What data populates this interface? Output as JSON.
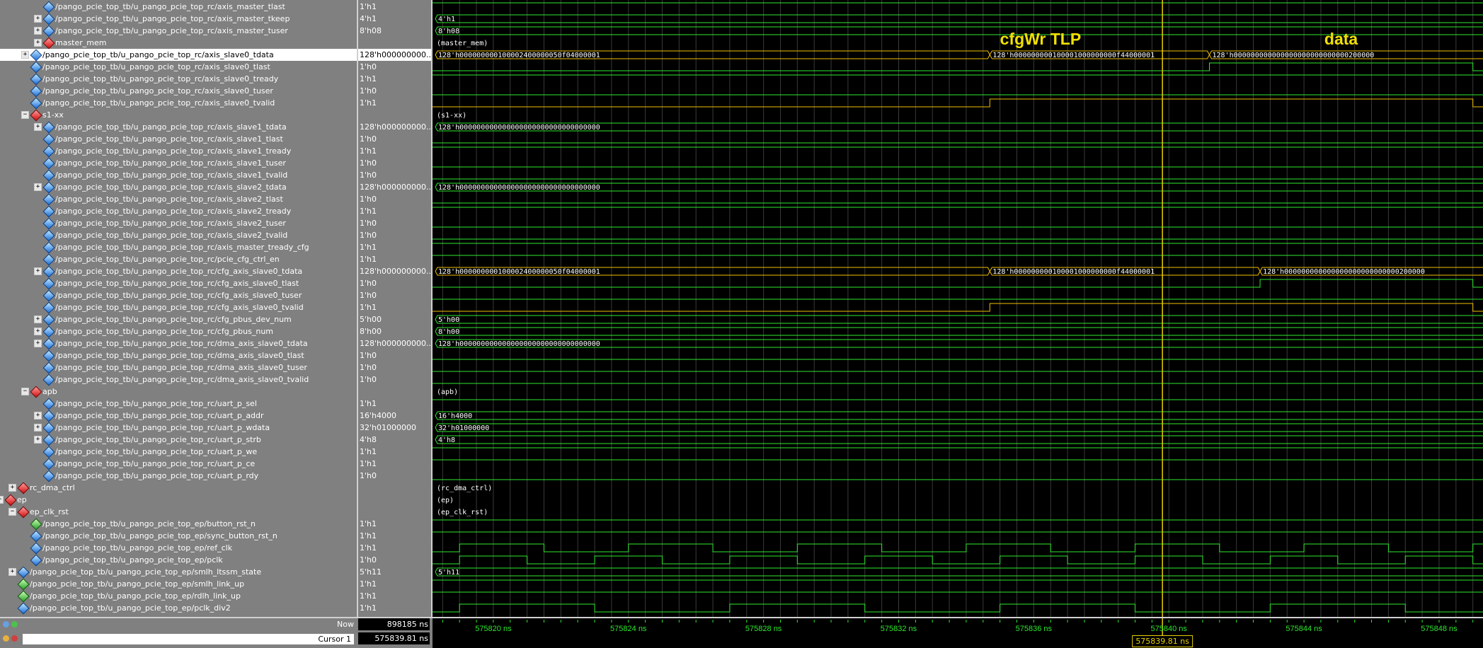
{
  "rows": [
    {
      "name": "/pango_pcie_top_tb/u_pango_pcie_top_rc/axis_master_tlast",
      "value": "1'h1",
      "depth": 2,
      "icon": "blue",
      "expander": ""
    },
    {
      "name": "/pango_pcie_top_tb/u_pango_pcie_top_rc/axis_master_tkeep",
      "value": "4'h1",
      "depth": 2,
      "icon": "blue",
      "expander": "+"
    },
    {
      "name": "/pango_pcie_top_tb/u_pango_pcie_top_rc/axis_master_tuser",
      "value": "8'h08",
      "depth": 2,
      "icon": "blue",
      "expander": "+"
    },
    {
      "name": "master_mem",
      "value": "",
      "depth": 2,
      "icon": "red",
      "expander": "+"
    },
    {
      "name": "/pango_pcie_top_tb/u_pango_pcie_top_rc/axis_slave0_tdata",
      "value": "128'h000000000...",
      "depth": 1,
      "icon": "blue",
      "expander": "+",
      "selected": true
    },
    {
      "name": "/pango_pcie_top_tb/u_pango_pcie_top_rc/axis_slave0_tlast",
      "value": "1'h0",
      "depth": 1,
      "icon": "blue",
      "expander": ""
    },
    {
      "name": "/pango_pcie_top_tb/u_pango_pcie_top_rc/axis_slave0_tready",
      "value": "1'h1",
      "depth": 1,
      "icon": "blue",
      "expander": ""
    },
    {
      "name": "/pango_pcie_top_tb/u_pango_pcie_top_rc/axis_slave0_tuser",
      "value": "1'h0",
      "depth": 1,
      "icon": "blue",
      "expander": ""
    },
    {
      "name": "/pango_pcie_top_tb/u_pango_pcie_top_rc/axis_slave0_tvalid",
      "value": "1'h1",
      "depth": 1,
      "icon": "blue",
      "expander": ""
    },
    {
      "name": "s1-xx",
      "value": "",
      "depth": 1,
      "icon": "red",
      "expander": "-"
    },
    {
      "name": "/pango_pcie_top_tb/u_pango_pcie_top_rc/axis_slave1_tdata",
      "value": "128'h000000000...",
      "depth": 2,
      "icon": "blue",
      "expander": "+"
    },
    {
      "name": "/pango_pcie_top_tb/u_pango_pcie_top_rc/axis_slave1_tlast",
      "value": "1'h0",
      "depth": 2,
      "icon": "blue",
      "expander": ""
    },
    {
      "name": "/pango_pcie_top_tb/u_pango_pcie_top_rc/axis_slave1_tready",
      "value": "1'h1",
      "depth": 2,
      "icon": "blue",
      "expander": ""
    },
    {
      "name": "/pango_pcie_top_tb/u_pango_pcie_top_rc/axis_slave1_tuser",
      "value": "1'h0",
      "depth": 2,
      "icon": "blue",
      "expander": ""
    },
    {
      "name": "/pango_pcie_top_tb/u_pango_pcie_top_rc/axis_slave1_tvalid",
      "value": "1'h0",
      "depth": 2,
      "icon": "blue",
      "expander": ""
    },
    {
      "name": "/pango_pcie_top_tb/u_pango_pcie_top_rc/axis_slave2_tdata",
      "value": "128'h000000000...",
      "depth": 2,
      "icon": "blue",
      "expander": "+"
    },
    {
      "name": "/pango_pcie_top_tb/u_pango_pcie_top_rc/axis_slave2_tlast",
      "value": "1'h0",
      "depth": 2,
      "icon": "blue",
      "expander": ""
    },
    {
      "name": "/pango_pcie_top_tb/u_pango_pcie_top_rc/axis_slave2_tready",
      "value": "1'h1",
      "depth": 2,
      "icon": "blue",
      "expander": ""
    },
    {
      "name": "/pango_pcie_top_tb/u_pango_pcie_top_rc/axis_slave2_tuser",
      "value": "1'h0",
      "depth": 2,
      "icon": "blue",
      "expander": ""
    },
    {
      "name": "/pango_pcie_top_tb/u_pango_pcie_top_rc/axis_slave2_tvalid",
      "value": "1'h0",
      "depth": 2,
      "icon": "blue",
      "expander": ""
    },
    {
      "name": "/pango_pcie_top_tb/u_pango_pcie_top_rc/axis_master_tready_cfg",
      "value": "1'h1",
      "depth": 2,
      "icon": "blue",
      "expander": ""
    },
    {
      "name": "/pango_pcie_top_tb/u_pango_pcie_top_rc/pcie_cfg_ctrl_en",
      "value": "1'h1",
      "depth": 2,
      "icon": "blue",
      "expander": ""
    },
    {
      "name": "/pango_pcie_top_tb/u_pango_pcie_top_rc/cfg_axis_slave0_tdata",
      "value": "128'h000000000...",
      "depth": 2,
      "icon": "blue",
      "expander": "+"
    },
    {
      "name": "/pango_pcie_top_tb/u_pango_pcie_top_rc/cfg_axis_slave0_tlast",
      "value": "1'h0",
      "depth": 2,
      "icon": "blue",
      "expander": ""
    },
    {
      "name": "/pango_pcie_top_tb/u_pango_pcie_top_rc/cfg_axis_slave0_tuser",
      "value": "1'h0",
      "depth": 2,
      "icon": "blue",
      "expander": ""
    },
    {
      "name": "/pango_pcie_top_tb/u_pango_pcie_top_rc/cfg_axis_slave0_tvalid",
      "value": "1'h1",
      "depth": 2,
      "icon": "blue",
      "expander": ""
    },
    {
      "name": "/pango_pcie_top_tb/u_pango_pcie_top_rc/cfg_pbus_dev_num",
      "value": "5'h00",
      "depth": 2,
      "icon": "blue",
      "expander": "+"
    },
    {
      "name": "/pango_pcie_top_tb/u_pango_pcie_top_rc/cfg_pbus_num",
      "value": "8'h00",
      "depth": 2,
      "icon": "blue",
      "expander": "+"
    },
    {
      "name": "/pango_pcie_top_tb/u_pango_pcie_top_rc/dma_axis_slave0_tdata",
      "value": "128'h000000000...",
      "depth": 2,
      "icon": "blue",
      "expander": "+"
    },
    {
      "name": "/pango_pcie_top_tb/u_pango_pcie_top_rc/dma_axis_slave0_tlast",
      "value": "1'h0",
      "depth": 2,
      "icon": "blue",
      "expander": ""
    },
    {
      "name": "/pango_pcie_top_tb/u_pango_pcie_top_rc/dma_axis_slave0_tuser",
      "value": "1'h0",
      "depth": 2,
      "icon": "blue",
      "expander": ""
    },
    {
      "name": "/pango_pcie_top_tb/u_pango_pcie_top_rc/dma_axis_slave0_tvalid",
      "value": "1'h0",
      "depth": 2,
      "icon": "blue",
      "expander": ""
    },
    {
      "name": "apb",
      "value": "",
      "depth": 1,
      "icon": "red",
      "expander": "-"
    },
    {
      "name": "/pango_pcie_top_tb/u_pango_pcie_top_rc/uart_p_sel",
      "value": "1'h1",
      "depth": 2,
      "icon": "blue",
      "expander": ""
    },
    {
      "name": "/pango_pcie_top_tb/u_pango_pcie_top_rc/uart_p_addr",
      "value": "16'h4000",
      "depth": 2,
      "icon": "blue",
      "expander": "+"
    },
    {
      "name": "/pango_pcie_top_tb/u_pango_pcie_top_rc/uart_p_wdata",
      "value": "32'h01000000",
      "depth": 2,
      "icon": "blue",
      "expander": "+"
    },
    {
      "name": "/pango_pcie_top_tb/u_pango_pcie_top_rc/uart_p_strb",
      "value": "4'h8",
      "depth": 2,
      "icon": "blue",
      "expander": "+"
    },
    {
      "name": "/pango_pcie_top_tb/u_pango_pcie_top_rc/uart_p_we",
      "value": "1'h1",
      "depth": 2,
      "icon": "blue",
      "expander": ""
    },
    {
      "name": "/pango_pcie_top_tb/u_pango_pcie_top_rc/uart_p_ce",
      "value": "1'h1",
      "depth": 2,
      "icon": "blue",
      "expander": ""
    },
    {
      "name": "/pango_pcie_top_tb/u_pango_pcie_top_rc/uart_p_rdy",
      "value": "1'h0",
      "depth": 2,
      "icon": "blue",
      "expander": ""
    },
    {
      "name": "rc_dma_ctrl",
      "value": "",
      "depth": 0,
      "icon": "red",
      "expander": "+"
    },
    {
      "name": "ep",
      "value": "",
      "depth": -1,
      "icon": "red",
      "expander": "-"
    },
    {
      "name": "ep_clk_rst",
      "value": "",
      "depth": 0,
      "icon": "red",
      "expander": "-"
    },
    {
      "name": "/pango_pcie_top_tb/u_pango_pcie_top_ep/button_rst_n",
      "value": "1'h1",
      "depth": 1,
      "icon": "green",
      "expander": ""
    },
    {
      "name": "/pango_pcie_top_tb/u_pango_pcie_top_ep/sync_button_rst_n",
      "value": "1'h1",
      "depth": 1,
      "icon": "blue",
      "expander": ""
    },
    {
      "name": "/pango_pcie_top_tb/u_pango_pcie_top_ep/ref_clk",
      "value": "1'h1",
      "depth": 1,
      "icon": "blue",
      "expander": ""
    },
    {
      "name": "/pango_pcie_top_tb/u_pango_pcie_top_ep/pclk",
      "value": "1'h0",
      "depth": 1,
      "icon": "blue",
      "expander": ""
    },
    {
      "name": "/pango_pcie_top_tb/u_pango_pcie_top_ep/smlh_ltssm_state",
      "value": "5'h11",
      "depth": 0,
      "icon": "blue",
      "expander": "+"
    },
    {
      "name": "/pango_pcie_top_tb/u_pango_pcie_top_ep/smlh_link_up",
      "value": "1'h1",
      "depth": 0,
      "icon": "green",
      "expander": ""
    },
    {
      "name": "/pango_pcie_top_tb/u_pango_pcie_top_ep/rdlh_link_up",
      "value": "1'h1",
      "depth": 0,
      "icon": "green",
      "expander": ""
    },
    {
      "name": "/pango_pcie_top_tb/u_pango_pcie_top_ep/pclk_div2",
      "value": "1'h1",
      "depth": 0,
      "icon": "blue",
      "expander": ""
    }
  ],
  "waves": [
    {
      "kind": "bit",
      "init": 1
    },
    {
      "kind": "bus",
      "segs": [
        {
          "start": 575818,
          "text": "4'h1"
        }
      ]
    },
    {
      "kind": "bus",
      "segs": [
        {
          "start": 575818,
          "text": "8'h08"
        }
      ]
    },
    {
      "kind": "group",
      "text": "(master_mem)"
    },
    {
      "kind": "bus",
      "segs": [
        {
          "start": 575818,
          "text": "128'h000000000100002400000050f04000001"
        },
        {
          "start": 575834.7,
          "text": "128'h000000000100001000000000f44000001"
        },
        {
          "start": 575841.2,
          "text": "128'h000000000000000000000000000200000"
        }
      ]
    },
    {
      "kind": "bit",
      "init": 0,
      "edges": [
        575841.2,
        575849
      ]
    },
    {
      "kind": "bit",
      "init": 1
    },
    {
      "kind": "bit",
      "init": 0
    },
    {
      "kind": "bit",
      "init": 0,
      "edges": [
        575834.7,
        575849
      ]
    },
    {
      "kind": "group",
      "text": "(s1-xx)"
    },
    {
      "kind": "bus",
      "segs": [
        {
          "start": 575818,
          "text": "128'h000000000000000000000000000000000"
        }
      ]
    },
    {
      "kind": "bit",
      "init": 0
    },
    {
      "kind": "bit",
      "init": 1
    },
    {
      "kind": "bit",
      "init": 0
    },
    {
      "kind": "bit",
      "init": 0
    },
    {
      "kind": "bus",
      "segs": [
        {
          "start": 575818,
          "text": "128'h000000000000000000000000000000000"
        }
      ]
    },
    {
      "kind": "bit",
      "init": 0
    },
    {
      "kind": "bit",
      "init": 1
    },
    {
      "kind": "bit",
      "init": 0
    },
    {
      "kind": "bit",
      "init": 0
    },
    {
      "kind": "bit",
      "init": 1
    },
    {
      "kind": "bit",
      "init": 1
    },
    {
      "kind": "bus",
      "segs": [
        {
          "start": 575818,
          "text": "128'h000000000100002400000050f04000001"
        },
        {
          "start": 575834.7,
          "text": "128'h000000000100001000000000f44000001"
        },
        {
          "start": 575842.7,
          "text": "128'h000000000000000000000000000200000"
        }
      ]
    },
    {
      "kind": "bit",
      "init": 0,
      "edges": [
        575842.7,
        575849
      ]
    },
    {
      "kind": "bit",
      "init": 0
    },
    {
      "kind": "bit",
      "init": 0,
      "edges": [
        575834.7,
        575849
      ]
    },
    {
      "kind": "bus",
      "segs": [
        {
          "start": 575818,
          "text": "5'h00"
        }
      ]
    },
    {
      "kind": "bus",
      "segs": [
        {
          "start": 575818,
          "text": "8'h00"
        }
      ]
    },
    {
      "kind": "bus",
      "segs": [
        {
          "start": 575818,
          "text": "128'h000000000000000000000000000000000"
        }
      ]
    },
    {
      "kind": "bit",
      "init": 0
    },
    {
      "kind": "bit",
      "init": 0
    },
    {
      "kind": "bit",
      "init": 0
    },
    {
      "kind": "group",
      "text": "(apb)"
    },
    {
      "kind": "bit",
      "init": 1
    },
    {
      "kind": "bus",
      "segs": [
        {
          "start": 575818,
          "text": "16'h4000"
        }
      ]
    },
    {
      "kind": "bus",
      "segs": [
        {
          "start": 575818,
          "text": "32'h01000000"
        }
      ]
    },
    {
      "kind": "bus",
      "segs": [
        {
          "start": 575818,
          "text": "4'h8"
        }
      ]
    },
    {
      "kind": "bit",
      "init": 1
    },
    {
      "kind": "bit",
      "init": 1
    },
    {
      "kind": "bit",
      "init": 0
    },
    {
      "kind": "group",
      "text": "(rc_dma_ctrl)"
    },
    {
      "kind": "group",
      "text": "(ep)"
    },
    {
      "kind": "group",
      "text": "(ep_clk_rst)"
    },
    {
      "kind": "bit",
      "init": 1
    },
    {
      "kind": "bit",
      "init": 1
    },
    {
      "kind": "clock",
      "init": 0,
      "period": 5,
      "phase": 575819
    },
    {
      "kind": "clock",
      "init": 1,
      "period": 4,
      "phase": 575817
    },
    {
      "kind": "bus",
      "segs": [
        {
          "start": 575818,
          "text": "5'h11"
        }
      ]
    },
    {
      "kind": "bit",
      "init": 1
    },
    {
      "kind": "bit",
      "init": 1
    },
    {
      "kind": "clock",
      "init": 0,
      "period": 8,
      "phase": 575819
    }
  ],
  "wave_view": {
    "t_start": 575818.2,
    "t_end": 575849.3,
    "ns_per_label": 4,
    "minor_per_label": 8
  },
  "timeline": {
    "labels": [
      {
        "t": 575820,
        "text": "575820 ns"
      },
      {
        "t": 575824,
        "text": "575824 ns"
      },
      {
        "t": 575828,
        "text": "575828 ns"
      },
      {
        "t": 575832,
        "text": "575832 ns"
      },
      {
        "t": 575836,
        "text": "575836 ns"
      },
      {
        "t": 575840,
        "text": "575840 ns"
      },
      {
        "t": 575844,
        "text": "575844 ns"
      },
      {
        "t": 575848,
        "text": "575848 ns"
      }
    ]
  },
  "cursor": {
    "t": 575839.81,
    "label": "Cursor 1",
    "value": "575839.81 ns",
    "box_text": "575839.81 ns"
  },
  "now": {
    "label": "Now",
    "value": "898185 ns"
  },
  "annotations": [
    {
      "text": "cfgWr TLP",
      "t": 575836.2
    },
    {
      "text": "data",
      "t": 575845.1
    }
  ],
  "colors": {
    "wave": "#2ee82e",
    "wave_active": "#f0c000",
    "cursor": "#e8d000",
    "grid": "#3a3a3a"
  }
}
